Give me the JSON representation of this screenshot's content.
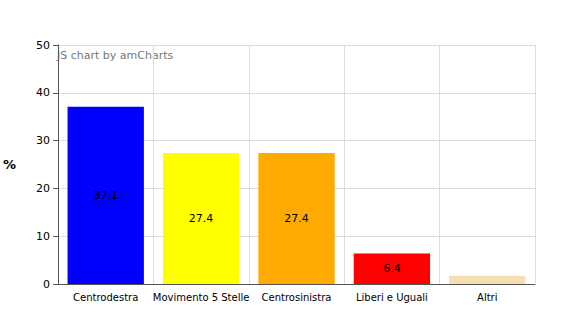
{
  "chart_data": {
    "type": "bar",
    "y_label": "%",
    "annotation": "JS chart by amCharts",
    "categories": [
      "Centrodestra",
      "Movimento 5 Stelle",
      "Centrosinistra",
      "Liberi e Uguali",
      "Altri"
    ],
    "values": [
      37.1,
      27.4,
      27.4,
      6.4,
      1.7
    ],
    "value_labels": [
      "37.1",
      "27.4",
      "27.4",
      "6.4",
      null
    ],
    "colors": [
      "#0000ff",
      "#ffff00",
      "#ffaa00",
      "#ff0000",
      "#f5deb3"
    ],
    "ylim": [
      0,
      50
    ],
    "yticks": [
      0,
      10,
      20,
      30,
      40,
      50
    ],
    "grid": true,
    "data_labels": true
  }
}
